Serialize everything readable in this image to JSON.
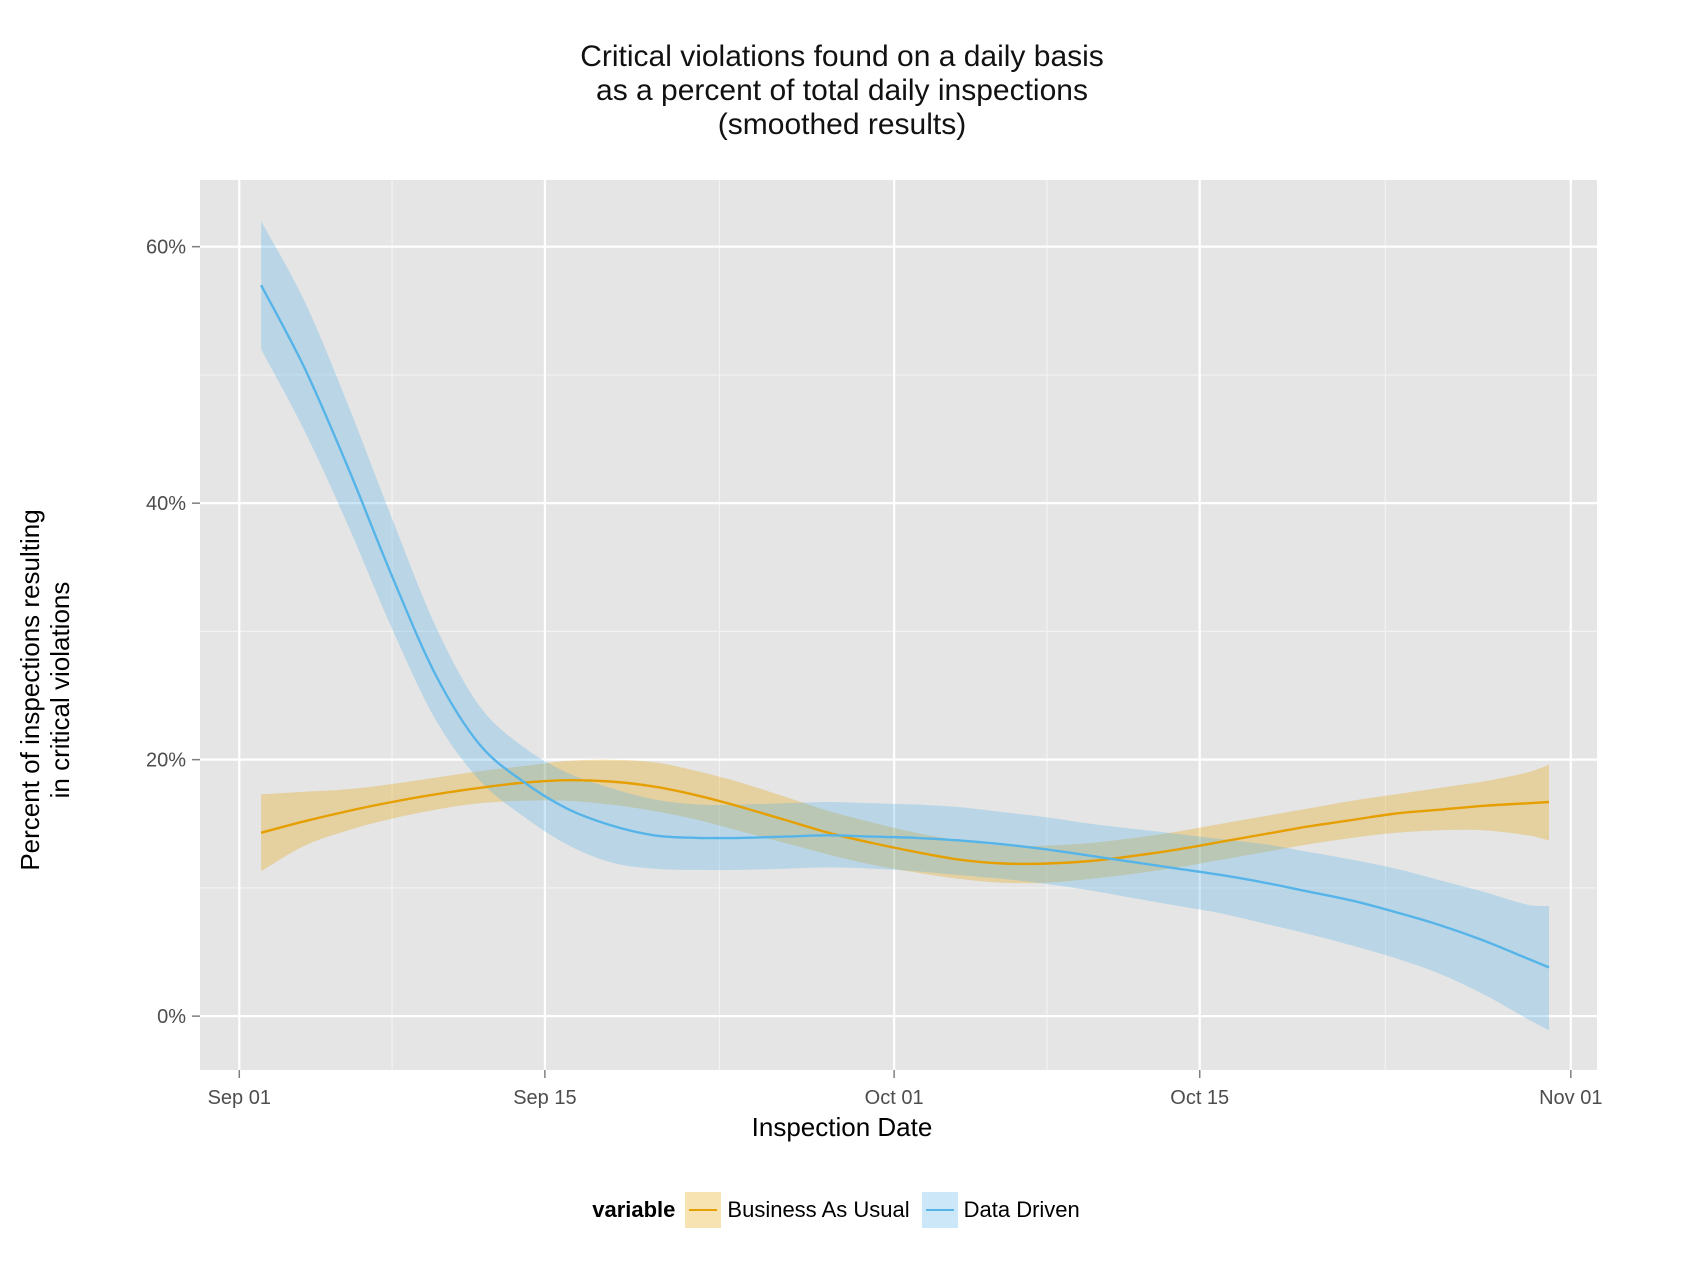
{
  "chart_data": {
    "type": "line",
    "title_lines": [
      "Critical violations found on a daily basis",
      "as a percent of total daily inspections",
      "(smoothed results)"
    ],
    "xlabel": "Inspection Date",
    "ylabel_lines": [
      "Percent of inspections resulting",
      "in critical violations"
    ],
    "x_ticks": [
      {
        "label": "Sep 01",
        "day": 0
      },
      {
        "label": "Sep 15",
        "day": 14
      },
      {
        "label": "Oct 01",
        "day": 30
      },
      {
        "label": "Oct 15",
        "day": 44
      },
      {
        "label": "Nov 01",
        "day": 61
      }
    ],
    "x_range_days": [
      -1.8,
      62.2
    ],
    "y_ticks": [
      {
        "label": "0%",
        "value": 0
      },
      {
        "label": "20%",
        "value": 20
      },
      {
        "label": "40%",
        "value": 40
      },
      {
        "label": "60%",
        "value": 60
      }
    ],
    "y_range": [
      -4.2,
      65.2
    ],
    "grid": true,
    "legend": {
      "title": "variable",
      "position": "bottom"
    },
    "x_days": [
      1,
      3,
      5,
      7,
      9,
      11,
      13,
      15,
      17,
      19,
      21,
      23,
      25,
      27,
      29,
      31,
      33,
      35,
      37,
      39,
      41,
      43,
      45,
      47,
      49,
      51,
      53,
      55,
      57,
      59,
      60
    ],
    "series": [
      {
        "name": "Business As Usual",
        "color": "#E69F00",
        "fit": [
          14.3,
          15.2,
          16.0,
          16.7,
          17.3,
          17.8,
          18.2,
          18.4,
          18.3,
          17.9,
          17.2,
          16.3,
          15.3,
          14.3,
          13.5,
          12.8,
          12.2,
          11.9,
          11.9,
          12.1,
          12.5,
          13.0,
          13.6,
          14.2,
          14.8,
          15.3,
          15.8,
          16.1,
          16.4,
          16.6,
          16.7
        ],
        "lower": [
          11.3,
          13.3,
          14.5,
          15.4,
          16.1,
          16.6,
          16.8,
          16.8,
          16.5,
          16.0,
          15.3,
          14.4,
          13.5,
          12.6,
          11.8,
          11.2,
          10.7,
          10.4,
          10.4,
          10.7,
          11.1,
          11.6,
          12.2,
          12.8,
          13.4,
          13.9,
          14.3,
          14.5,
          14.5,
          14.1,
          13.7
        ],
        "upper": [
          17.3,
          17.5,
          17.7,
          18.1,
          18.6,
          19.1,
          19.5,
          19.9,
          20.0,
          19.8,
          19.1,
          18.2,
          17.1,
          16.0,
          15.1,
          14.3,
          13.7,
          13.3,
          13.3,
          13.5,
          13.9,
          14.4,
          15.0,
          15.6,
          16.2,
          16.8,
          17.3,
          17.8,
          18.3,
          19.0,
          19.6
        ]
      },
      {
        "name": "Data Driven",
        "color": "#56B4E9",
        "fit": [
          57.0,
          50.5,
          42.7,
          34.3,
          26.6,
          21.2,
          18.3,
          16.2,
          14.9,
          14.1,
          13.9,
          13.9,
          14.0,
          14.1,
          14.0,
          13.9,
          13.7,
          13.4,
          13.0,
          12.5,
          12.0,
          11.5,
          11.0,
          10.4,
          9.7,
          9.0,
          8.1,
          7.1,
          5.9,
          4.5,
          3.8
        ],
        "lower": [
          52.0,
          45.6,
          38.2,
          30.2,
          23.1,
          18.4,
          15.6,
          13.4,
          12.0,
          11.5,
          11.4,
          11.4,
          11.5,
          11.6,
          11.5,
          11.3,
          11.0,
          10.7,
          10.3,
          9.8,
          9.2,
          8.6,
          8.0,
          7.2,
          6.4,
          5.5,
          4.5,
          3.3,
          1.7,
          -0.2,
          -1.1
        ],
        "upper": [
          62.0,
          55.7,
          47.6,
          38.8,
          30.4,
          24.2,
          21.0,
          19.0,
          17.8,
          16.9,
          16.5,
          16.5,
          16.6,
          16.7,
          16.6,
          16.5,
          16.3,
          15.9,
          15.5,
          15.0,
          14.6,
          14.2,
          13.8,
          13.4,
          12.8,
          12.2,
          11.5,
          10.6,
          9.7,
          8.7,
          8.6
        ]
      }
    ]
  }
}
